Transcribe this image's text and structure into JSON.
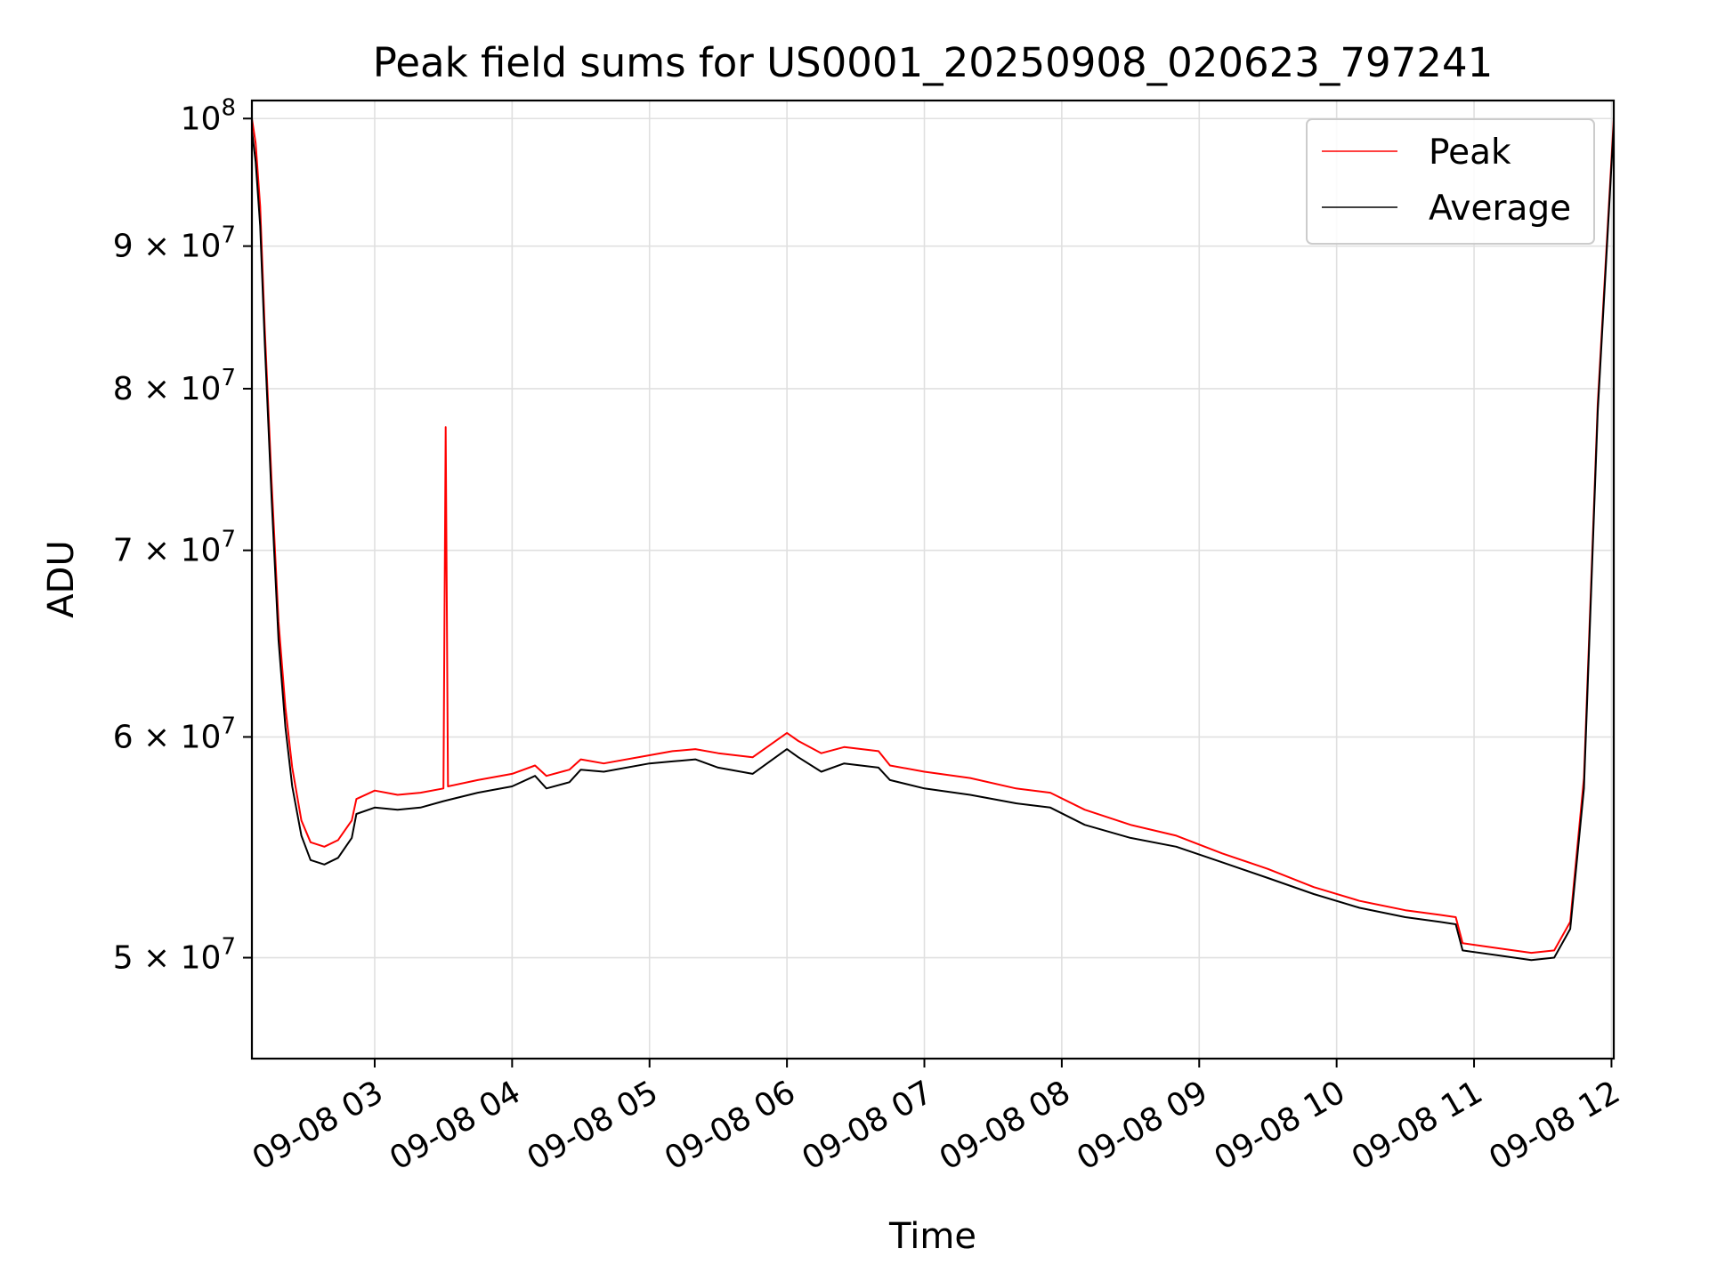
{
  "chart_data": {
    "type": "line",
    "title": "Peak field sums for US0001_20250908_020623_797241",
    "xlabel": "Time",
    "ylabel": "ADU",
    "y_scale": "log",
    "ylim": [
      46000000,
      101500000
    ],
    "xlim": [
      "2025-09-08 02:06:23",
      "2025-09-08 12:01:00"
    ],
    "x_ticks": [
      {
        "t": "2025-09-08 03:00",
        "label": "09-08 03"
      },
      {
        "t": "2025-09-08 04:00",
        "label": "09-08 04"
      },
      {
        "t": "2025-09-08 05:00",
        "label": "09-08 05"
      },
      {
        "t": "2025-09-08 06:00",
        "label": "09-08 06"
      },
      {
        "t": "2025-09-08 07:00",
        "label": "09-08 07"
      },
      {
        "t": "2025-09-08 08:00",
        "label": "09-08 08"
      },
      {
        "t": "2025-09-08 09:00",
        "label": "09-08 09"
      },
      {
        "t": "2025-09-08 10:00",
        "label": "09-08 10"
      },
      {
        "t": "2025-09-08 11:00",
        "label": "09-08 11"
      },
      {
        "t": "2025-09-08 12:00",
        "label": "09-08 12"
      }
    ],
    "y_ticks": [
      {
        "v": 100000000,
        "base": "10",
        "exp": "8"
      },
      {
        "v": 90000000,
        "mant": "9",
        "base": "10",
        "exp": "7"
      },
      {
        "v": 80000000,
        "mant": "8",
        "base": "10",
        "exp": "7"
      },
      {
        "v": 70000000,
        "mant": "7",
        "base": "10",
        "exp": "7"
      },
      {
        "v": 60000000,
        "mant": "6",
        "base": "10",
        "exp": "7"
      },
      {
        "v": 50000000,
        "mant": "5",
        "base": "10",
        "exp": "7"
      }
    ],
    "grid": true,
    "legend_position": "top-right",
    "series": [
      {
        "name": "Peak",
        "color": "#ff0000",
        "points": [
          [
            "2025-09-08 02:06:23",
            100000000
          ],
          [
            "2025-09-08 02:08",
            98000000
          ],
          [
            "2025-09-08 02:10",
            93000000
          ],
          [
            "2025-09-08 02:12",
            84000000
          ],
          [
            "2025-09-08 02:15",
            74000000
          ],
          [
            "2025-09-08 02:18",
            66000000
          ],
          [
            "2025-09-08 02:21",
            61500000
          ],
          [
            "2025-09-08 02:24",
            58500000
          ],
          [
            "2025-09-08 02:28",
            56000000
          ],
          [
            "2025-09-08 02:32",
            55000000
          ],
          [
            "2025-09-08 02:38",
            54800000
          ],
          [
            "2025-09-08 02:44",
            55100000
          ],
          [
            "2025-09-08 02:50",
            56000000
          ],
          [
            "2025-09-08 02:52",
            57000000
          ],
          [
            "2025-09-08 03:00",
            57400000
          ],
          [
            "2025-09-08 03:10",
            57200000
          ],
          [
            "2025-09-08 03:20",
            57300000
          ],
          [
            "2025-09-08 03:30",
            57500000
          ],
          [
            "2025-09-08 03:31",
            77500000
          ],
          [
            "2025-09-08 03:32",
            57600000
          ],
          [
            "2025-09-08 03:45",
            57900000
          ],
          [
            "2025-09-08 04:00",
            58200000
          ],
          [
            "2025-09-08 04:10",
            58600000
          ],
          [
            "2025-09-08 04:15",
            58100000
          ],
          [
            "2025-09-08 04:25",
            58400000
          ],
          [
            "2025-09-08 04:30",
            58900000
          ],
          [
            "2025-09-08 04:40",
            58700000
          ],
          [
            "2025-09-08 05:00",
            59100000
          ],
          [
            "2025-09-08 05:10",
            59300000
          ],
          [
            "2025-09-08 05:20",
            59400000
          ],
          [
            "2025-09-08 05:30",
            59200000
          ],
          [
            "2025-09-08 05:45",
            59000000
          ],
          [
            "2025-09-08 06:00",
            60200000
          ],
          [
            "2025-09-08 06:05",
            59800000
          ],
          [
            "2025-09-08 06:15",
            59200000
          ],
          [
            "2025-09-08 06:25",
            59500000
          ],
          [
            "2025-09-08 06:40",
            59300000
          ],
          [
            "2025-09-08 06:45",
            58600000
          ],
          [
            "2025-09-08 07:00",
            58300000
          ],
          [
            "2025-09-08 07:20",
            58000000
          ],
          [
            "2025-09-08 07:40",
            57500000
          ],
          [
            "2025-09-08 07:55",
            57300000
          ],
          [
            "2025-09-08 08:10",
            56500000
          ],
          [
            "2025-09-08 08:30",
            55800000
          ],
          [
            "2025-09-08 08:50",
            55300000
          ],
          [
            "2025-09-08 09:10",
            54500000
          ],
          [
            "2025-09-08 09:30",
            53800000
          ],
          [
            "2025-09-08 09:50",
            53000000
          ],
          [
            "2025-09-08 10:10",
            52400000
          ],
          [
            "2025-09-08 10:30",
            52000000
          ],
          [
            "2025-09-08 10:45",
            51800000
          ],
          [
            "2025-09-08 10:52",
            51700000
          ],
          [
            "2025-09-08 10:55",
            50600000
          ],
          [
            "2025-09-08 11:10",
            50400000
          ],
          [
            "2025-09-08 11:25",
            50200000
          ],
          [
            "2025-09-08 11:35",
            50300000
          ],
          [
            "2025-09-08 11:42",
            51500000
          ],
          [
            "2025-09-08 11:48",
            58000000
          ],
          [
            "2025-09-08 11:54",
            79000000
          ],
          [
            "2025-09-08 12:01",
            100000000
          ]
        ]
      },
      {
        "name": "Average",
        "color": "#000000",
        "points": [
          [
            "2025-09-08 02:06:23",
            99000000
          ],
          [
            "2025-09-08 02:08",
            96500000
          ],
          [
            "2025-09-08 02:10",
            91500000
          ],
          [
            "2025-09-08 02:12",
            83000000
          ],
          [
            "2025-09-08 02:15",
            73000000
          ],
          [
            "2025-09-08 02:18",
            65000000
          ],
          [
            "2025-09-08 02:21",
            60500000
          ],
          [
            "2025-09-08 02:24",
            57600000
          ],
          [
            "2025-09-08 02:28",
            55300000
          ],
          [
            "2025-09-08 02:32",
            54200000
          ],
          [
            "2025-09-08 02:38",
            54000000
          ],
          [
            "2025-09-08 02:44",
            54300000
          ],
          [
            "2025-09-08 02:50",
            55200000
          ],
          [
            "2025-09-08 02:52",
            56300000
          ],
          [
            "2025-09-08 03:00",
            56600000
          ],
          [
            "2025-09-08 03:10",
            56500000
          ],
          [
            "2025-09-08 03:20",
            56600000
          ],
          [
            "2025-09-08 03:30",
            56900000
          ],
          [
            "2025-09-08 03:45",
            57300000
          ],
          [
            "2025-09-08 04:00",
            57600000
          ],
          [
            "2025-09-08 04:10",
            58100000
          ],
          [
            "2025-09-08 04:15",
            57500000
          ],
          [
            "2025-09-08 04:25",
            57800000
          ],
          [
            "2025-09-08 04:30",
            58400000
          ],
          [
            "2025-09-08 04:40",
            58300000
          ],
          [
            "2025-09-08 05:00",
            58700000
          ],
          [
            "2025-09-08 05:10",
            58800000
          ],
          [
            "2025-09-08 05:20",
            58900000
          ],
          [
            "2025-09-08 05:30",
            58500000
          ],
          [
            "2025-09-08 05:45",
            58200000
          ],
          [
            "2025-09-08 06:00",
            59400000
          ],
          [
            "2025-09-08 06:05",
            59000000
          ],
          [
            "2025-09-08 06:15",
            58300000
          ],
          [
            "2025-09-08 06:25",
            58700000
          ],
          [
            "2025-09-08 06:40",
            58500000
          ],
          [
            "2025-09-08 06:45",
            57900000
          ],
          [
            "2025-09-08 07:00",
            57500000
          ],
          [
            "2025-09-08 07:20",
            57200000
          ],
          [
            "2025-09-08 07:40",
            56800000
          ],
          [
            "2025-09-08 07:55",
            56600000
          ],
          [
            "2025-09-08 08:10",
            55800000
          ],
          [
            "2025-09-08 08:30",
            55200000
          ],
          [
            "2025-09-08 08:50",
            54800000
          ],
          [
            "2025-09-08 09:10",
            54100000
          ],
          [
            "2025-09-08 09:30",
            53400000
          ],
          [
            "2025-09-08 09:50",
            52700000
          ],
          [
            "2025-09-08 10:10",
            52100000
          ],
          [
            "2025-09-08 10:30",
            51700000
          ],
          [
            "2025-09-08 10:45",
            51500000
          ],
          [
            "2025-09-08 10:52",
            51400000
          ],
          [
            "2025-09-08 10:55",
            50300000
          ],
          [
            "2025-09-08 11:10",
            50100000
          ],
          [
            "2025-09-08 11:25",
            49900000
          ],
          [
            "2025-09-08 11:35",
            50000000
          ],
          [
            "2025-09-08 11:42",
            51200000
          ],
          [
            "2025-09-08 11:48",
            57500000
          ],
          [
            "2025-09-08 11:54",
            78500000
          ],
          [
            "2025-09-08 12:01",
            99500000
          ]
        ]
      }
    ]
  }
}
